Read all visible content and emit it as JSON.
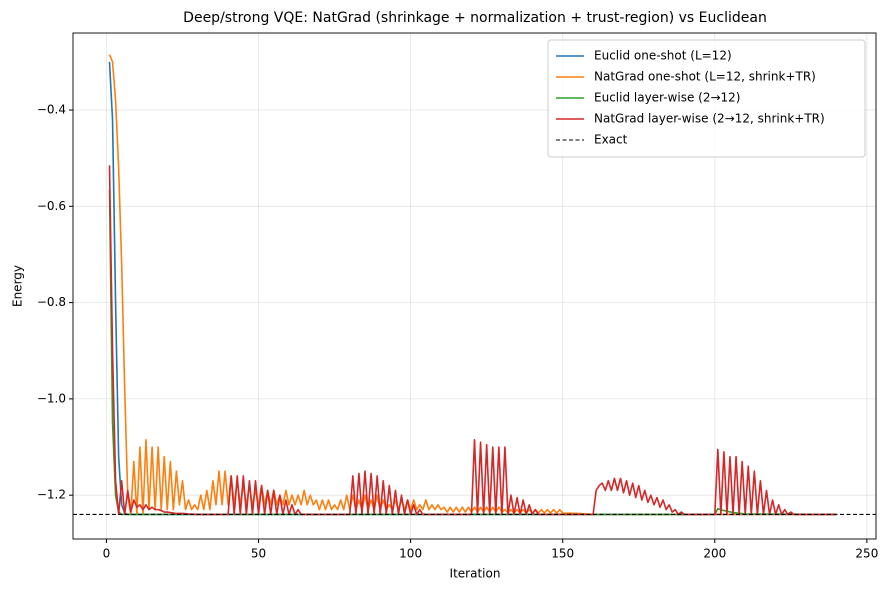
{
  "chart_data": {
    "type": "line",
    "title": "Deep/strong VQE: NatGrad (shrinkage + normalization + trust-region) vs Euclidean",
    "xlabel": "Iteration",
    "ylabel": "Energy",
    "xlim": [
      -11,
      253
    ],
    "ylim": [
      -1.291,
      -0.24
    ],
    "xticks": [
      0,
      50,
      100,
      150,
      200,
      250
    ],
    "yticks": [
      {
        "value": -1.2,
        "label": "−1.2"
      },
      {
        "value": -1.0,
        "label": "−1.0"
      },
      {
        "value": -0.8,
        "label": "−0.8"
      },
      {
        "value": -0.6,
        "label": "−0.6"
      },
      {
        "value": -0.4,
        "label": "−0.4"
      }
    ],
    "grid": true,
    "legend": "upper right",
    "series": [
      {
        "name": "Euclid one-shot (L=12)",
        "color": "#1f77b4",
        "x": [
          1,
          2,
          3,
          4,
          5,
          6,
          7,
          240
        ],
        "values": [
          -0.3,
          -0.42,
          -0.8,
          -1.12,
          -1.22,
          -1.237,
          -1.24,
          -1.24
        ]
      },
      {
        "name": "NatGrad one-shot (L=12, shrink+TR)",
        "color": "#ff7f0e",
        "x": [
          1,
          2,
          3,
          4,
          5,
          6,
          7,
          8,
          9,
          10,
          11,
          12,
          13,
          14,
          15,
          16,
          17,
          18,
          19,
          20,
          21,
          22,
          23,
          24,
          25,
          26,
          27,
          28,
          29,
          30,
          31,
          32,
          33,
          34,
          35,
          36,
          37,
          38,
          39,
          40,
          41,
          42,
          43,
          44,
          45,
          46,
          47,
          48,
          49,
          50,
          51,
          52,
          53,
          54,
          55,
          56,
          57,
          58,
          59,
          60,
          61,
          62,
          63,
          64,
          65,
          66,
          67,
          68,
          69,
          70,
          71,
          72,
          73,
          74,
          75,
          76,
          77,
          78,
          79,
          80,
          81,
          82,
          83,
          84,
          85,
          86,
          87,
          88,
          89,
          90,
          91,
          92,
          93,
          94,
          95,
          96,
          97,
          98,
          99,
          100,
          101,
          102,
          103,
          104,
          105,
          106,
          107,
          108,
          109,
          110,
          111,
          112,
          113,
          114,
          115,
          116,
          117,
          118,
          119,
          120,
          121,
          122,
          123,
          124,
          125,
          126,
          127,
          128,
          129,
          130,
          131,
          132,
          133,
          134,
          135,
          136,
          137,
          138,
          139,
          140,
          141,
          142,
          143,
          144,
          145,
          146,
          147,
          148,
          149,
          150,
          155,
          160,
          240
        ],
        "values": [
          -0.285,
          -0.3,
          -0.38,
          -0.52,
          -0.72,
          -0.98,
          -1.2,
          -1.24,
          -1.13,
          -1.24,
          -1.1,
          -1.24,
          -1.085,
          -1.23,
          -1.1,
          -1.23,
          -1.1,
          -1.23,
          -1.12,
          -1.23,
          -1.13,
          -1.23,
          -1.15,
          -1.22,
          -1.17,
          -1.23,
          -1.21,
          -1.23,
          -1.22,
          -1.23,
          -1.2,
          -1.23,
          -1.19,
          -1.23,
          -1.17,
          -1.22,
          -1.15,
          -1.22,
          -1.15,
          -1.22,
          -1.16,
          -1.22,
          -1.17,
          -1.22,
          -1.18,
          -1.22,
          -1.18,
          -1.22,
          -1.19,
          -1.22,
          -1.18,
          -1.22,
          -1.19,
          -1.22,
          -1.19,
          -1.22,
          -1.2,
          -1.22,
          -1.19,
          -1.22,
          -1.2,
          -1.22,
          -1.2,
          -1.22,
          -1.19,
          -1.22,
          -1.2,
          -1.22,
          -1.21,
          -1.23,
          -1.21,
          -1.23,
          -1.21,
          -1.23,
          -1.22,
          -1.23,
          -1.21,
          -1.23,
          -1.2,
          -1.23,
          -1.2,
          -1.23,
          -1.21,
          -1.23,
          -1.2,
          -1.23,
          -1.21,
          -1.23,
          -1.2,
          -1.23,
          -1.21,
          -1.23,
          -1.22,
          -1.23,
          -1.21,
          -1.23,
          -1.21,
          -1.23,
          -1.21,
          -1.23,
          -1.21,
          -1.23,
          -1.22,
          -1.23,
          -1.21,
          -1.23,
          -1.22,
          -1.23,
          -1.22,
          -1.23,
          -1.225,
          -1.235,
          -1.225,
          -1.235,
          -1.225,
          -1.235,
          -1.225,
          -1.235,
          -1.225,
          -1.235,
          -1.225,
          -1.235,
          -1.225,
          -1.235,
          -1.225,
          -1.235,
          -1.225,
          -1.235,
          -1.225,
          -1.235,
          -1.23,
          -1.237,
          -1.23,
          -1.237,
          -1.23,
          -1.237,
          -1.23,
          -1.237,
          -1.23,
          -1.237,
          -1.23,
          -1.237,
          -1.23,
          -1.237,
          -1.23,
          -1.237,
          -1.23,
          -1.237,
          -1.23,
          -1.237,
          -1.238,
          -1.24,
          -1.24
        ]
      },
      {
        "name": "Euclid layer-wise (2→12)",
        "color": "#2ca02c",
        "x": [
          1,
          2,
          3,
          4,
          5,
          6,
          200,
          201,
          203,
          206,
          210,
          240
        ],
        "values": [
          -0.565,
          -1.05,
          -1.2,
          -1.235,
          -1.24,
          -1.24,
          -1.24,
          -1.228,
          -1.232,
          -1.236,
          -1.239,
          -1.24
        ]
      },
      {
        "name": "NatGrad layer-wise (2→12, shrink+TR)",
        "color": "#d62728",
        "x": [
          1,
          2,
          3,
          4,
          5,
          6,
          7,
          8,
          9,
          10,
          11,
          12,
          13,
          14,
          15,
          16,
          17,
          18,
          19,
          20,
          21,
          23,
          25,
          27,
          30,
          40,
          41,
          42,
          43,
          44,
          45,
          46,
          47,
          48,
          49,
          50,
          51,
          52,
          53,
          54,
          55,
          56,
          57,
          58,
          59,
          60,
          61,
          62,
          63,
          64,
          80,
          81,
          82,
          83,
          84,
          85,
          86,
          87,
          88,
          89,
          90,
          91,
          92,
          93,
          94,
          95,
          96,
          97,
          98,
          99,
          100,
          101,
          102,
          103,
          104,
          120,
          121,
          122,
          123,
          124,
          125,
          126,
          127,
          128,
          129,
          130,
          131,
          132,
          133,
          134,
          135,
          136,
          137,
          138,
          139,
          140,
          141,
          142,
          160,
          161,
          162,
          163,
          164,
          165,
          166,
          167,
          168,
          169,
          170,
          171,
          172,
          173,
          174,
          175,
          176,
          177,
          178,
          179,
          180,
          181,
          182,
          183,
          184,
          185,
          186,
          187,
          188,
          189,
          190,
          200,
          201,
          202,
          203,
          204,
          205,
          206,
          207,
          208,
          209,
          210,
          211,
          212,
          213,
          214,
          215,
          216,
          217,
          218,
          219,
          220,
          221,
          222,
          223,
          224,
          225,
          226,
          240
        ],
        "values": [
          -0.515,
          -0.9,
          -1.17,
          -1.24,
          -1.17,
          -1.24,
          -1.19,
          -1.235,
          -1.21,
          -1.225,
          -1.22,
          -1.23,
          -1.22,
          -1.23,
          -1.225,
          -1.23,
          -1.23,
          -1.232,
          -1.235,
          -1.235,
          -1.236,
          -1.238,
          -1.238,
          -1.239,
          -1.24,
          -1.24,
          -1.16,
          -1.24,
          -1.16,
          -1.24,
          -1.16,
          -1.24,
          -1.17,
          -1.24,
          -1.17,
          -1.24,
          -1.18,
          -1.24,
          -1.19,
          -1.24,
          -1.19,
          -1.24,
          -1.2,
          -1.24,
          -1.21,
          -1.24,
          -1.22,
          -1.24,
          -1.23,
          -1.24,
          -1.24,
          -1.16,
          -1.24,
          -1.155,
          -1.24,
          -1.15,
          -1.24,
          -1.155,
          -1.24,
          -1.16,
          -1.24,
          -1.17,
          -1.24,
          -1.18,
          -1.24,
          -1.19,
          -1.24,
          -1.2,
          -1.24,
          -1.21,
          -1.24,
          -1.22,
          -1.24,
          -1.23,
          -1.24,
          -1.24,
          -1.085,
          -1.24,
          -1.09,
          -1.24,
          -1.095,
          -1.24,
          -1.1,
          -1.24,
          -1.1,
          -1.24,
          -1.1,
          -1.24,
          -1.2,
          -1.24,
          -1.205,
          -1.24,
          -1.21,
          -1.24,
          -1.22,
          -1.24,
          -1.23,
          -1.24,
          -1.24,
          -1.19,
          -1.18,
          -1.175,
          -1.19,
          -1.17,
          -1.19,
          -1.165,
          -1.19,
          -1.165,
          -1.195,
          -1.17,
          -1.2,
          -1.175,
          -1.205,
          -1.18,
          -1.21,
          -1.19,
          -1.215,
          -1.2,
          -1.22,
          -1.205,
          -1.225,
          -1.21,
          -1.23,
          -1.22,
          -1.235,
          -1.23,
          -1.24,
          -1.235,
          -1.24,
          -1.24,
          -1.105,
          -1.24,
          -1.11,
          -1.24,
          -1.12,
          -1.24,
          -1.12,
          -1.24,
          -1.13,
          -1.24,
          -1.14,
          -1.24,
          -1.15,
          -1.24,
          -1.17,
          -1.24,
          -1.19,
          -1.24,
          -1.21,
          -1.24,
          -1.22,
          -1.24,
          -1.23,
          -1.24,
          -1.235,
          -1.24,
          -1.24
        ]
      }
    ],
    "hlines": [
      {
        "name": "Exact",
        "value": -1.24,
        "color": "#000000"
      }
    ]
  }
}
